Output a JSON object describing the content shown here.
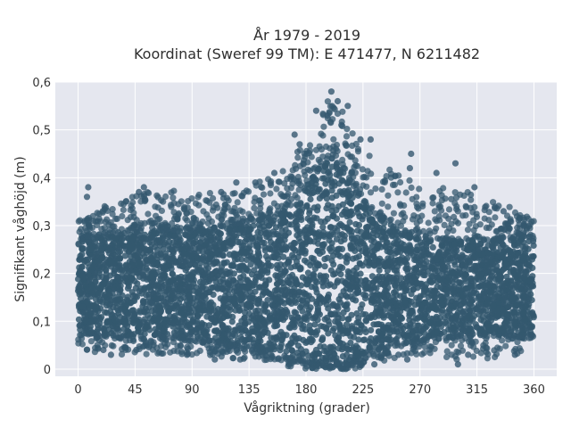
{
  "chart_data": {
    "type": "scatter",
    "title": "År 1979 - 2019",
    "subtitle": "Koordinat (Sweref 99 TM): E 471477, N 6211482",
    "xlabel": "Vågriktning (grader)",
    "ylabel": "Signifikant våghöjd (m)",
    "xlim": [
      -18,
      378
    ],
    "ylim": [
      -0.015,
      0.6
    ],
    "xticks": [
      0,
      45,
      90,
      135,
      180,
      225,
      270,
      315,
      360
    ],
    "xtick_labels": [
      "0",
      "45",
      "90",
      "135",
      "180",
      "225",
      "270",
      "315",
      "360"
    ],
    "yticks": [
      0,
      0.1,
      0.2,
      0.3,
      0.4,
      0.5,
      0.6
    ],
    "ytick_labels": [
      "0",
      "0,1",
      "0,2",
      "0,3",
      "0,4",
      "0,5",
      "0,6"
    ],
    "grid": true,
    "legend": "none",
    "colors": {
      "marker": "#34586f",
      "plot_background": "#e5e7ef",
      "grid": "#ffffff"
    },
    "envelope": {
      "direction_deg": [
        0,
        20,
        40,
        60,
        90,
        120,
        140,
        160,
        175,
        190,
        200,
        210,
        220,
        230,
        250,
        270,
        290,
        310,
        330,
        350,
        360
      ],
      "core_min_m": [
        0.08,
        0.07,
        0.07,
        0.07,
        0.07,
        0.05,
        0.05,
        0.03,
        0.02,
        0.01,
        0.01,
        0.01,
        0.02,
        0.04,
        0.05,
        0.06,
        0.07,
        0.07,
        0.07,
        0.07,
        0.08
      ],
      "core_max_m": [
        0.26,
        0.28,
        0.29,
        0.29,
        0.29,
        0.3,
        0.31,
        0.32,
        0.36,
        0.42,
        0.44,
        0.42,
        0.37,
        0.33,
        0.3,
        0.28,
        0.27,
        0.27,
        0.27,
        0.28,
        0.27
      ],
      "sparse_max_m": [
        0.31,
        0.34,
        0.37,
        0.38,
        0.37,
        0.37,
        0.39,
        0.41,
        0.46,
        0.53,
        0.58,
        0.55,
        0.48,
        0.45,
        0.42,
        0.38,
        0.38,
        0.37,
        0.35,
        0.33,
        0.32
      ],
      "sparse_min_m": [
        0.04,
        0.03,
        0.03,
        0.03,
        0.03,
        0.02,
        0.02,
        0.01,
        0.0,
        0.0,
        0.0,
        0.0,
        0.0,
        0.01,
        0.02,
        0.03,
        0.02,
        0.02,
        0.02,
        0.03,
        0.05
      ]
    },
    "points": [
      [
        200,
        0.58
      ],
      [
        197,
        0.53
      ],
      [
        213,
        0.55
      ],
      [
        205,
        0.56
      ],
      [
        188,
        0.54
      ],
      [
        208,
        0.51
      ],
      [
        223,
        0.48
      ],
      [
        231,
        0.48
      ],
      [
        263,
        0.45
      ],
      [
        298,
        0.43
      ],
      [
        313,
        0.38
      ],
      [
        8,
        0.38
      ],
      [
        262,
        0.42
      ],
      [
        283,
        0.41
      ],
      [
        171,
        0.49
      ],
      [
        175,
        0.47
      ],
      [
        125,
        0.39
      ],
      [
        140,
        0.39
      ],
      [
        155,
        0.41
      ],
      [
        113,
        0.37
      ],
      [
        52,
        0.38
      ],
      [
        48,
        0.37
      ],
      [
        7,
        0.36
      ],
      [
        336,
        0.33
      ],
      [
        300,
        0.01
      ],
      [
        345,
        0.03
      ],
      [
        308,
        0.03
      ],
      [
        260,
        0.02
      ],
      [
        26,
        0.03
      ],
      [
        20,
        0.04
      ],
      [
        46,
        0.04
      ],
      [
        86,
        0.03
      ],
      [
        108,
        0.02
      ],
      [
        128,
        0.02
      ],
      [
        234,
        0.01
      ],
      [
        253,
        0.03
      ]
    ]
  }
}
